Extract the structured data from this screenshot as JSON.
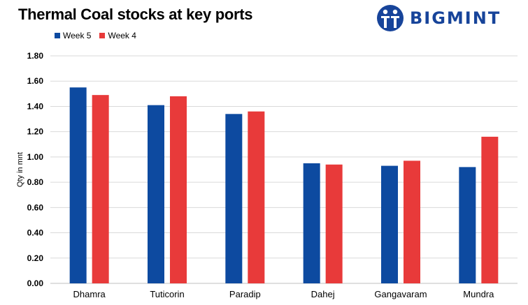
{
  "chart_data": {
    "type": "bar",
    "title": "Thermal Coal stocks at key ports",
    "categories": [
      "Dhamra",
      "Tuticorin",
      "Paradip",
      "Dahej",
      "Gangavaram",
      "Mundra"
    ],
    "series": [
      {
        "name": "Week 5",
        "color": "#0d4aa0",
        "values": [
          1.55,
          1.41,
          1.34,
          0.95,
          0.93,
          0.92
        ]
      },
      {
        "name": "Week 4",
        "color": "#e83a3a",
        "values": [
          1.49,
          1.48,
          1.36,
          0.94,
          0.97,
          1.16
        ]
      }
    ],
    "xlabel": "",
    "ylabel": "Qty in mnt",
    "ylim": [
      0,
      1.8
    ],
    "yticks": [
      "0.00",
      "0.20",
      "0.40",
      "0.60",
      "0.80",
      "1.00",
      "1.20",
      "1.40",
      "1.60",
      "1.80"
    ],
    "grid": true,
    "legend_position": "top-left"
  },
  "brand": {
    "name": "BIGMINT",
    "color": "#17449a"
  }
}
